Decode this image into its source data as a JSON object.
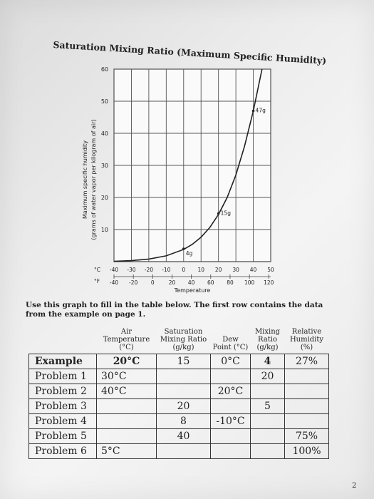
{
  "doc": {
    "title": "Saturation Mixing Ratio (Maximum Specific Humidity)",
    "instruction": "Use this graph to fill in the table below. The first row contains the data from the example on page 1.",
    "page_number": "2"
  },
  "chart_data": {
    "type": "line",
    "ylabel_line1": "Maximum specific humidity",
    "ylabel_line2": "(grams of water vapor per kilogram of air)",
    "xlabel": "Temperature",
    "ylim": [
      0,
      60
    ],
    "xlim_c": [
      -40,
      50
    ],
    "y_ticks": [
      "10",
      "20",
      "30",
      "40",
      "50",
      "60"
    ],
    "x_ticks_c": [
      "-40",
      "-30",
      "-20",
      "-10",
      "0",
      "10",
      "20",
      "30",
      "40",
      "50"
    ],
    "x_ticks_f": [
      "-40",
      "-20",
      "0",
      "20",
      "40",
      "60",
      "80",
      "100",
      "120"
    ],
    "unit_c": "°C",
    "unit_f": "°F",
    "grid": true,
    "series": [
      {
        "x": [
          -40,
          -30,
          -20,
          -10,
          0,
          5,
          10,
          15,
          20,
          25,
          30,
          35,
          40,
          45
        ],
        "y": [
          0.1,
          0.3,
          0.8,
          1.8,
          3.8,
          5.4,
          7.6,
          10.6,
          14.7,
          20.0,
          27.0,
          36.0,
          47.0,
          60.0
        ]
      }
    ],
    "annotations": [
      {
        "label": "4g",
        "x": 0,
        "y": 4
      },
      {
        "label": "15g",
        "x": 20,
        "y": 15
      },
      {
        "label": "47g",
        "x": 40,
        "y": 47
      }
    ]
  },
  "table": {
    "headers": [
      "",
      "Air Temperature (°C)",
      "Saturation Mixing Ratio (g/kg)",
      "Dew Point (°C)",
      "Mixing Ratio (g/kg)",
      "Relative Humidity (%)"
    ],
    "rows": [
      {
        "label": "Example",
        "air": "20°C",
        "sat": "15",
        "dew": "0°C",
        "mix": "4",
        "rh": "27%"
      },
      {
        "label": "Problem 1",
        "air": "30°C",
        "sat": "",
        "dew": "",
        "mix": "20",
        "rh": ""
      },
      {
        "label": "Problem 2",
        "air": "40°C",
        "sat": "",
        "dew": "20°C",
        "mix": "",
        "rh": ""
      },
      {
        "label": "Problem 3",
        "air": "",
        "sat": "20",
        "dew": "",
        "mix": "5",
        "rh": ""
      },
      {
        "label": "Problem 4",
        "air": "",
        "sat": "8",
        "dew": "-10°C",
        "mix": "",
        "rh": ""
      },
      {
        "label": "Problem 5",
        "air": "",
        "sat": "40",
        "dew": "",
        "mix": "",
        "rh": "75%"
      },
      {
        "label": "Problem 6",
        "air": "5°C",
        "sat": "",
        "dew": "",
        "mix": "",
        "rh": "100%"
      }
    ]
  }
}
